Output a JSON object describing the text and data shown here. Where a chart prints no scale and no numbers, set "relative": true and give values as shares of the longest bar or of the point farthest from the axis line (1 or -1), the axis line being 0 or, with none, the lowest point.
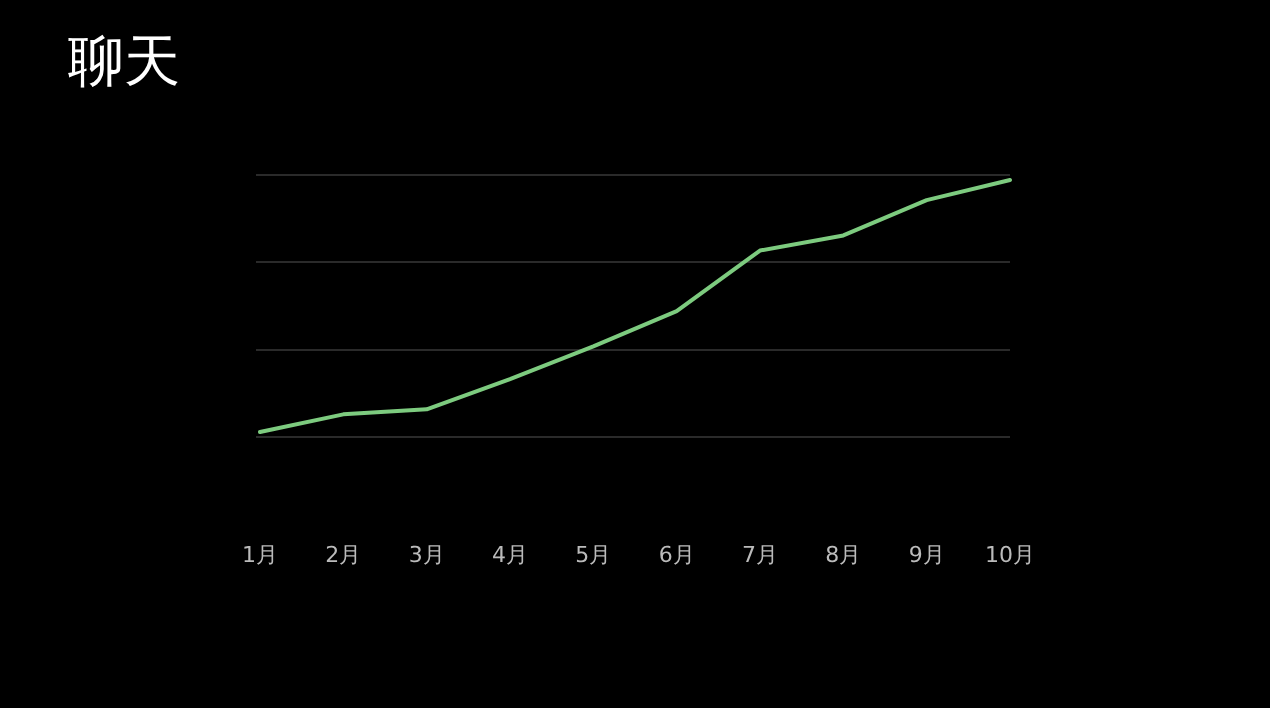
{
  "chart_data": {
    "type": "line",
    "title": "聊天",
    "relative": true,
    "ref_lines": [
      {
        "axis": "y",
        "value": 1.02,
        "color": "#2a2a2a"
      },
      {
        "axis": "y",
        "value": 0.675,
        "color": "#2a2a2a"
      },
      {
        "axis": "y",
        "value": 0.325,
        "color": "#2a2a2a"
      },
      {
        "axis": "y",
        "value": -0.02,
        "color": "#2a2a2a"
      }
    ],
    "categories": [
      "1月",
      "2月",
      "3月",
      "4月",
      "5月",
      "6月",
      "7月",
      "8月",
      "9月",
      "10月"
    ],
    "series": [
      {
        "color": "#7dcb7f",
        "values": [
          0,
          0.07,
          0.09,
          0.21,
          0.34,
          0.48,
          0.72,
          0.78,
          0.92,
          1
        ]
      }
    ]
  }
}
